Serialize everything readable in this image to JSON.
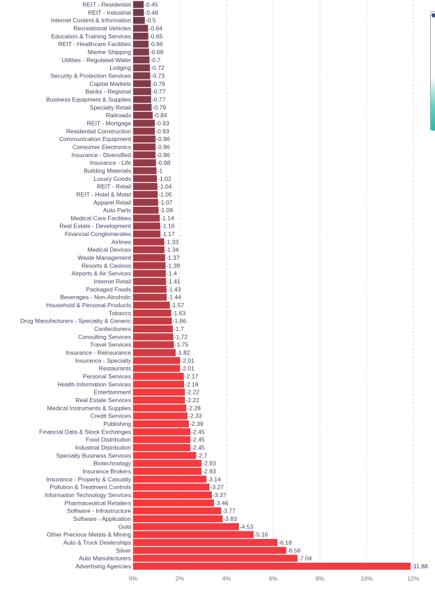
{
  "chart_data": {
    "type": "bar",
    "orientation": "horizontal",
    "categories": [
      "REIT - Residential",
      "REIT - Industrial",
      "Internet Content & Information",
      "Recreational Vehicles",
      "Education & Training Services",
      "REIT - Healthcare Facilities",
      "Marine Shipping",
      "Utilities - Regulated Water",
      "Lodging",
      "Security & Protection Services",
      "Capital Markets",
      "Banks - Regional",
      "Business Equipment & Supplies",
      "Specialty Retail",
      "Railroads",
      "REIT - Mortgage",
      "Residential Construction",
      "Communication Equipment",
      "Consumer Electronics",
      "Insurance - Diversified",
      "Insurance - Life",
      "Building Materials",
      "Luxury Goods",
      "REIT - Retail",
      "REIT - Hotel & Motel",
      "Apparel Retail",
      "Auto Parts",
      "Medical Care Facilities",
      "Real Estate - Development",
      "Financial Conglomerates",
      "Airlines",
      "Medical Devices",
      "Waste Management",
      "Resorts & Casinos",
      "Airports & Air Services",
      "Internet Retail",
      "Packaged Foods",
      "Beverages - Non-Alcoholic",
      "Household & Personal Products",
      "Tobacco",
      "Drug Manufacturers - Specialty & Generic",
      "Confectioners",
      "Consulting Services",
      "Travel Services",
      "Insurance - Reinsurance",
      "Insurance - Specialty",
      "Restaurants",
      "Personal Services",
      "Health Information Services",
      "Entertainment",
      "Real Estate Services",
      "Medical Instruments & Supplies",
      "Credit Services",
      "Publishing",
      "Financial Data & Stock Exchanges",
      "Food Distribution",
      "Industrial Distribution",
      "Specialty Business Services",
      "Biotechnology",
      "Insurance Brokers",
      "Insurance - Property & Casualty",
      "Pollution & Treatment Controls",
      "Information Technology Services",
      "Pharmaceutical Retailers",
      "Software - Infrastructure",
      "Software - Application",
      "Gold",
      "Other Precious Metals & Mining",
      "Auto & Truck Dealerships",
      "Silver",
      "Auto Manufacturers",
      "Advertising Agencies"
    ],
    "values": [
      -0.45,
      -0.46,
      -0.5,
      -0.64,
      -0.65,
      -0.66,
      -0.68,
      -0.7,
      -0.72,
      -0.73,
      -0.76,
      -0.77,
      -0.77,
      -0.79,
      -0.84,
      -0.93,
      -0.93,
      -0.96,
      -0.96,
      -0.96,
      -0.98,
      -1,
      -1.02,
      -1.04,
      -1.05,
      -1.07,
      -1.09,
      -1.14,
      -1.16,
      -1.17,
      -1.33,
      -1.34,
      -1.37,
      -1.39,
      -1.4,
      -1.41,
      -1.43,
      -1.44,
      -1.57,
      -1.63,
      -1.66,
      -1.7,
      -1.72,
      -1.75,
      -1.82,
      -2.01,
      -2.01,
      -2.17,
      -2.18,
      -2.22,
      -2.22,
      -2.28,
      -2.33,
      -2.39,
      -2.45,
      -2.45,
      -2.45,
      -2.7,
      -2.93,
      -2.93,
      -3.14,
      -3.27,
      -3.37,
      -3.46,
      -3.77,
      -3.83,
      -4.53,
      -5.16,
      -6.18,
      -6.56,
      -7.04,
      -11.88
    ],
    "value_labels": [
      "-0.45",
      "-0.46",
      "-0.5",
      "-0.64",
      "-0.65",
      "-0.66",
      "-0.68",
      "-0.7",
      "-0.72",
      "-0.73",
      "-0.76",
      "-0.77",
      "-0.77",
      "-0.79",
      "-0.84",
      "-0.93",
      "-0.93",
      "-0.96",
      "-0.96",
      "-0.96",
      "-0.98",
      "-1",
      "-1.02",
      "-1.04",
      "-1.05",
      "-1.07",
      "-1.09",
      "-1.14",
      "-1.16",
      "-1.17",
      "-1.33",
      "-1.34",
      "-1.37",
      "-1.39",
      "-1.4",
      "-1.41",
      "-1.43",
      "-1.44",
      "-1.57",
      "-1.63",
      "-1.66",
      "-1.7",
      "-1.72",
      "-1.75",
      "-1.82",
      "-2.01",
      "-2.01",
      "-2.17",
      "-2.18",
      "-2.22",
      "-2.22",
      "-2.28",
      "-2.33",
      "-2.39",
      "-2.45",
      "-2.45",
      "-2.45",
      "-2.7",
      "-2.93",
      "-2.93",
      "-3.14",
      "-3.27",
      "-3.37",
      "-3.46",
      "-3.77",
      "-3.83",
      "-4.53",
      "-5.16",
      "-6.18",
      "-6.56",
      "-7.04",
      "-11.88"
    ],
    "x_ticks": [
      "0%",
      "2%",
      "4%",
      "6%",
      "8%",
      "10%",
      "12%"
    ],
    "x_tick_values": [
      0,
      2,
      4,
      6,
      8,
      10,
      12
    ],
    "xlim": [
      0,
      12
    ],
    "bar_magnitude": "absolute value of change",
    "grid": true,
    "grid_style": "dashed vertical",
    "legend": "none",
    "colors": {
      "mild": "#6b3b4c",
      "strong": "#f23a3f",
      "text": "#3f4660",
      "grid": "#d9dbe1"
    },
    "color_scale_domain": [
      0.45,
      2.2
    ],
    "title": "",
    "xlabel": "",
    "ylabel": ""
  },
  "side_panel": {
    "icon": "shield-icon"
  }
}
